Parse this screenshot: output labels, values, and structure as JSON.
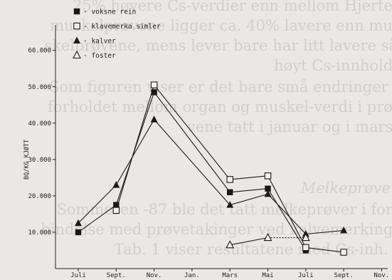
{
  "background_text": [
    {
      "text": "25% høyere Cs-verdier enn mellom Hjerte-",
      "italic": false
    },
    {
      "text": "muskelprøvene ligger ca. 40% lavere enn mu-",
      "italic": false
    },
    {
      "text": "skelprøvene, mens lever bare har litt lavere så",
      "italic": false
    },
    {
      "text": "høyt Cs-innhold.",
      "italic": false
    },
    {
      "text": "Som figuren viser er det bare små endringer i",
      "italic": false
    },
    {
      "text": "forholdet mellom organ og muskel-verdi i prø-",
      "italic": false
    },
    {
      "text": "vene tatt i januar og i mars.",
      "italic": false
    },
    {
      "text": "Melkeprøver",
      "italic": true
    },
    {
      "text": "Sommeren -87 ble det tatt melkeprøver i for-",
      "italic": false
    },
    {
      "text": "bindelse med prøvetakinger ved kalvemerking.",
      "italic": false
    },
    {
      "text": "Tab. 1 viser resultatene med Cs-inh. i",
      "italic": false
    }
  ],
  "chart_data": {
    "type": "line",
    "ylabel": "BQ/KG KJØTT",
    "categories": [
      "Juli",
      "Sept.",
      "Nov.",
      "Jan.",
      "Mars",
      "Mai",
      "Juli",
      "Sept.",
      "Nov."
    ],
    "y_ticks": [
      "10.000",
      "20.000",
      "30.000",
      "40.000",
      "50.000",
      "60.000"
    ],
    "ylim": [
      0,
      67000
    ],
    "legend_position": "top-left",
    "grid": false,
    "series": [
      {
        "name": "voksne rein",
        "marker": "filled-square",
        "color": "#1a1a1a",
        "x": [
          0,
          1,
          2,
          4,
          5,
          6,
          7
        ],
        "values": [
          10000,
          17500,
          48500,
          21000,
          22000,
          5000,
          null
        ]
      },
      {
        "name": "klavemerka simler",
        "marker": "open-square",
        "color": "#1a1a1a",
        "x": [
          0,
          1,
          2,
          4,
          5,
          6,
          7
        ],
        "values": [
          null,
          16000,
          50500,
          24500,
          25500,
          5800,
          4500
        ]
      },
      {
        "name": "kalver",
        "marker": "filled-triangle",
        "color": "#1a1a1a",
        "x": [
          0,
          1,
          2,
          4,
          5,
          6,
          7
        ],
        "values": [
          12500,
          23000,
          41000,
          17500,
          20500,
          9500,
          10500
        ]
      },
      {
        "name": "foster",
        "marker": "open-triangle",
        "color": "#1a1a1a",
        "x": [
          4,
          5,
          6
        ],
        "values": [
          6500,
          8500,
          8500
        ],
        "dashed_from_index": 1
      }
    ]
  }
}
